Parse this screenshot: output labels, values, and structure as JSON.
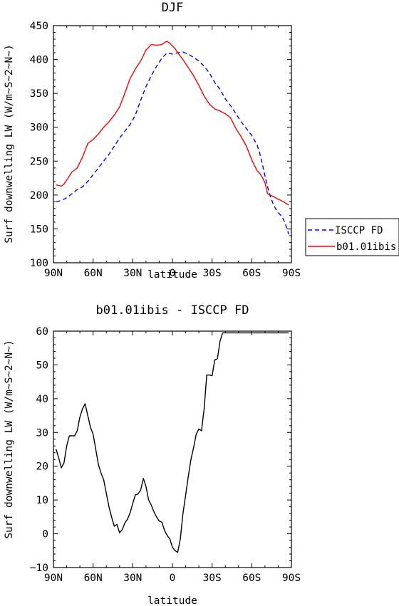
{
  "chart_data": [
    {
      "type": "line",
      "title": "DJF",
      "xlabel": "latitude",
      "ylabel": "Surf downwelling LW (W/m~S~2~N~)",
      "xlim": [
        -90,
        90
      ],
      "ylim": [
        100,
        450
      ],
      "x_ticks": [
        -90,
        -60,
        -30,
        0,
        30,
        60,
        90
      ],
      "x_tick_labels": [
        "90N",
        "60N",
        "30N",
        "0",
        "30S",
        "60S",
        "90S"
      ],
      "y_ticks": [
        100,
        150,
        200,
        250,
        300,
        350,
        400,
        450
      ],
      "y_tick_labels": [
        "100",
        "150",
        "200",
        "250",
        "300",
        "350",
        "400",
        "450"
      ],
      "legend_position": "right",
      "series": [
        {
          "name": "ISCCP FD",
          "color": "#0000ff",
          "dash": "dashed",
          "x": [
            -88,
            -84,
            -80,
            -76,
            -72,
            -68,
            -64,
            -60,
            -56,
            -52,
            -48,
            -44,
            -40,
            -36,
            -32,
            -28,
            -24,
            -20,
            -16,
            -12,
            -8,
            -4,
            0,
            4,
            8,
            12,
            16,
            20,
            24,
            28,
            32,
            36,
            40,
            44,
            48,
            52,
            56,
            60,
            64,
            66,
            68,
            70,
            72,
            74,
            76,
            78,
            80,
            82,
            84,
            86,
            88
          ],
          "values": [
            190,
            192,
            196,
            202,
            208,
            212,
            220,
            230,
            240,
            250,
            260,
            272,
            284,
            294,
            304,
            318,
            340,
            360,
            376,
            390,
            402,
            410,
            408,
            410,
            411,
            408,
            403,
            398,
            390,
            380,
            366,
            356,
            342,
            332,
            320,
            308,
            298,
            288,
            274,
            262,
            246,
            228,
            212,
            198,
            188,
            180,
            174,
            170,
            164,
            154,
            142
          ]
        },
        {
          "name": "b01.01ibis",
          "color": "#ff0000",
          "dash": "solid",
          "x": [
            -88,
            -84,
            -82,
            -80,
            -76,
            -72,
            -68,
            -64,
            -60,
            -56,
            -52,
            -48,
            -44,
            -40,
            -36,
            -32,
            -28,
            -24,
            -20,
            -16,
            -12,
            -8,
            -6,
            -4,
            -2,
            0,
            2,
            4,
            6,
            8,
            12,
            16,
            20,
            24,
            28,
            32,
            36,
            40,
            44,
            48,
            52,
            56,
            60,
            64,
            66,
            68,
            70,
            72,
            74,
            76,
            78,
            80,
            84,
            88
          ],
          "values": [
            215,
            213,
            216,
            222,
            234,
            240,
            256,
            276,
            282,
            290,
            300,
            308,
            318,
            330,
            350,
            372,
            386,
            398,
            414,
            422,
            421,
            422,
            425,
            427,
            424,
            420,
            416,
            410,
            405,
            400,
            388,
            376,
            362,
            346,
            334,
            327,
            324,
            320,
            314,
            298,
            286,
            272,
            252,
            236,
            232,
            226,
            218,
            202,
            200,
            198,
            196,
            194,
            190,
            185
          ]
        }
      ]
    },
    {
      "type": "line",
      "title": "b01.01ibis - ISCCP FD",
      "xlabel": "latitude",
      "ylabel": "Surf downwelling LW (W/m~S~2~N~)",
      "xlim": [
        -90,
        90
      ],
      "ylim": [
        -10,
        60
      ],
      "x_ticks": [
        -90,
        -60,
        -30,
        0,
        30,
        60,
        90
      ],
      "x_tick_labels": [
        "90N",
        "60N",
        "30N",
        "0",
        "30S",
        "60S",
        "90S"
      ],
      "y_ticks": [
        -10,
        0,
        10,
        20,
        30,
        40,
        50,
        60
      ],
      "y_tick_labels": [
        "−10",
        "0",
        "10",
        "20",
        "30",
        "40",
        "50",
        "60"
      ],
      "series": [
        {
          "color": "#000000",
          "dash": "solid",
          "x": [
            -88,
            -86,
            -84,
            -82,
            -80,
            -78,
            -76,
            -74,
            -72,
            -70,
            -68,
            -66,
            -64,
            -62,
            -60,
            -58,
            -56,
            -54,
            -52,
            -50,
            -48,
            -46,
            -44,
            -42,
            -40,
            -38,
            -36,
            -34,
            -32,
            -30,
            -28,
            -26,
            -24,
            -22,
            -20,
            -18,
            -16,
            -14,
            -12,
            -10,
            -8,
            -6,
            -4,
            -2,
            0,
            2,
            4,
            6,
            8,
            10,
            12,
            14,
            16,
            18,
            20,
            22,
            24,
            26,
            28,
            30,
            32,
            34,
            36,
            38,
            40,
            42,
            44,
            46,
            48,
            50,
            52,
            54,
            56,
            58,
            60,
            62,
            64,
            66,
            68,
            70,
            72,
            74,
            76,
            78,
            80,
            82,
            84,
            86,
            88
          ],
          "values": [
            25,
            22.5,
            19.5,
            21,
            26,
            29,
            29,
            29,
            30.5,
            34.5,
            37,
            38.5,
            35,
            31.5,
            29.5,
            25,
            20.5,
            18,
            16,
            12,
            8,
            5,
            2.2,
            2.8,
            0.3,
            1.2,
            3.2,
            4.3,
            6.2,
            9,
            11.5,
            11.8,
            13,
            16.4,
            14,
            10,
            8.5,
            6.5,
            5,
            3.8,
            3.4,
            1,
            -0.5,
            -1.5,
            -4,
            -5,
            -5.5,
            -1.5,
            6,
            11.5,
            17,
            22,
            25.5,
            29.5,
            31,
            30.5,
            37,
            47,
            47,
            46.8,
            51.5,
            51.8,
            57,
            59.5,
            59.5,
            59.5,
            59.5,
            59.5,
            59.5,
            59.5,
            59.5,
            59.5,
            59.5,
            59.5,
            59.5,
            59.5,
            59.5,
            59.5,
            59.5,
            59.5,
            59.5,
            59.5,
            59.5,
            59.5,
            59.5,
            59.5,
            59.5,
            59.5,
            59.5
          ]
        }
      ]
    }
  ]
}
